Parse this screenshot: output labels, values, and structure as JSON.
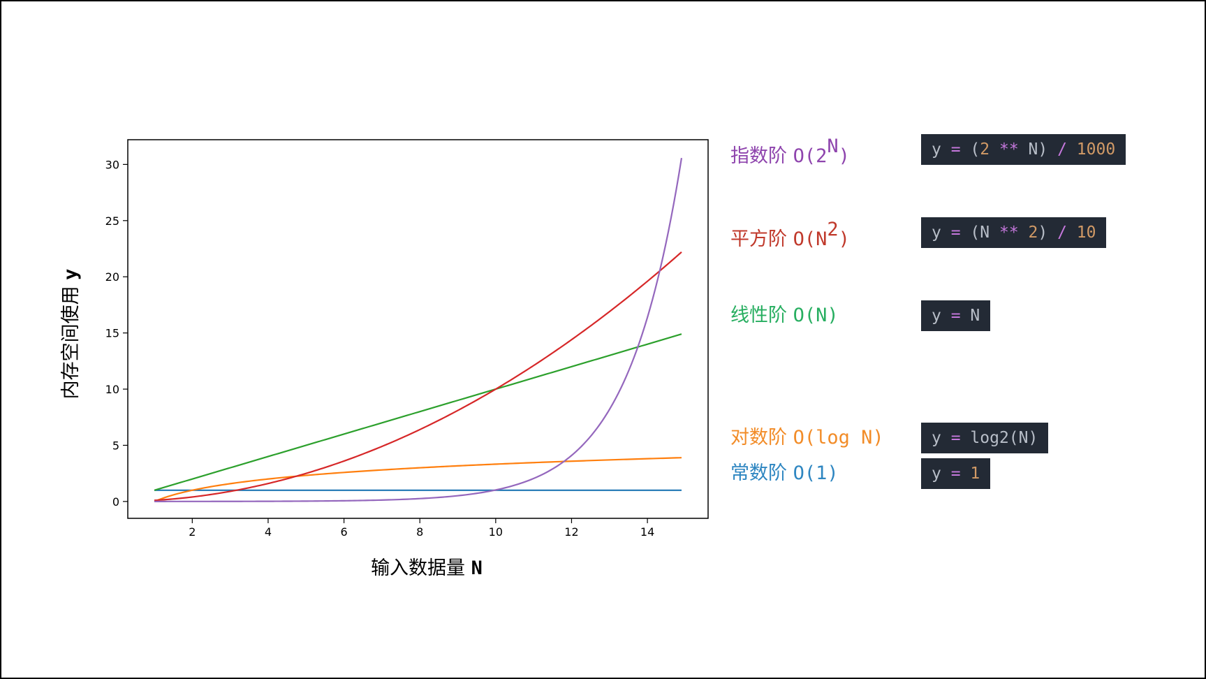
{
  "chart_data": {
    "type": "line",
    "xlabel_cn": "输入数据量",
    "xlabel_var": "N",
    "ylabel_cn": "内存空间使用",
    "ylabel_var": "y",
    "xlim": [
      0.3,
      15.6
    ],
    "ylim": [
      -1.5,
      32.2
    ],
    "x_ticks": [
      2,
      4,
      6,
      8,
      10,
      12,
      14
    ],
    "y_ticks": [
      0,
      5,
      10,
      15,
      20,
      25,
      30
    ],
    "x_range": [
      1,
      14.9
    ],
    "grid": false,
    "series": [
      {
        "name": "常数阶 O(1)",
        "formula": "y = 1",
        "color": "#1f77b4"
      },
      {
        "name": "对数阶 O(log N)",
        "formula": "y = log2(N)",
        "color": "#ff7f0e"
      },
      {
        "name": "线性阶 O(N)",
        "formula": "y = N",
        "color": "#2ca02c"
      },
      {
        "name": "平方阶 O(N^2)",
        "formula": "y = (N ** 2) / 10",
        "color": "#d62728"
      },
      {
        "name": "指数阶 O(2^N)",
        "formula": "y = (2 ** N) / 1000",
        "color": "#9467bd"
      }
    ]
  },
  "legend": [
    {
      "id": "exp",
      "cn": "指数阶",
      "big_o": "O(2",
      "sup": "N",
      "close": ")",
      "color": "#8e44ad",
      "code": [
        [
          "y",
          "var"
        ],
        [
          " = ",
          "op"
        ],
        [
          "(",
          "punc"
        ],
        [
          "2",
          "num"
        ],
        [
          " ** ",
          "op"
        ],
        [
          "N",
          "var"
        ],
        [
          ")",
          "punc"
        ],
        [
          " / ",
          "op"
        ],
        [
          "1000",
          "num"
        ]
      ]
    },
    {
      "id": "quad",
      "cn": "平方阶",
      "big_o": "O(N",
      "sup": "2",
      "close": ")",
      "color": "#c0392b",
      "code": [
        [
          "y",
          "var"
        ],
        [
          " = ",
          "op"
        ],
        [
          "(",
          "punc"
        ],
        [
          "N",
          "var"
        ],
        [
          " ** ",
          "op"
        ],
        [
          "2",
          "num"
        ],
        [
          ")",
          "punc"
        ],
        [
          " / ",
          "op"
        ],
        [
          "10",
          "num"
        ]
      ]
    },
    {
      "id": "lin",
      "cn": "线性阶",
      "big_o": "O(N)",
      "sup": "",
      "close": "",
      "color": "#27ae60",
      "code": [
        [
          "y",
          "var"
        ],
        [
          " = ",
          "op"
        ],
        [
          "N",
          "var"
        ]
      ]
    },
    {
      "id": "log",
      "cn": "对数阶",
      "big_o": "O(log N)",
      "sup": "",
      "close": "",
      "color": "#f28c28",
      "code": [
        [
          "y",
          "var"
        ],
        [
          " = ",
          "op"
        ],
        [
          "log2(N)",
          "var"
        ]
      ]
    },
    {
      "id": "const",
      "cn": "常数阶",
      "big_o": "O(1)",
      "sup": "",
      "close": "",
      "color": "#2e86c1",
      "code": [
        [
          "y",
          "var"
        ],
        [
          " = ",
          "op"
        ],
        [
          "1",
          "num"
        ]
      ]
    }
  ]
}
